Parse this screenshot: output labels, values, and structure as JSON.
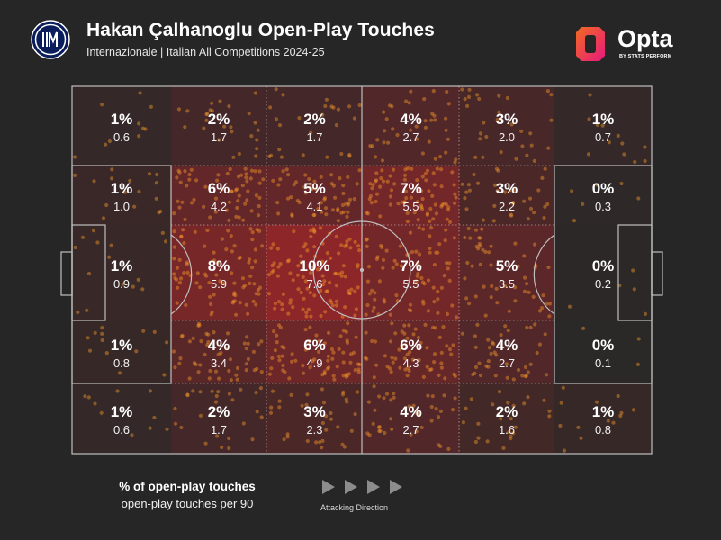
{
  "header": {
    "title": "Hakan Çalhanoglu Open-Play Touches",
    "subtitle": "Internazionale | Italian All Competitions 2024-25",
    "brand_name": "Opta",
    "brand_sub": "BY STATS PERFORM",
    "club_logo_icon": "inter-milan-crest-icon",
    "brand_logo_icon": "opta-logo-icon"
  },
  "legend": {
    "pct_label": "% of open-play touches",
    "p90_label": "open-play touches per 90"
  },
  "direction": {
    "label": "Attacking Direction",
    "arrow_icon": "triangle-right-icon",
    "arrow_count": 4
  },
  "colors": {
    "background": "#262626",
    "pitch_lines": "#bfbfbf",
    "heat_low": "#282828",
    "heat_high": "#c9252a",
    "dot": "#ff9f2a",
    "opta_orange": "#f26a21",
    "opta_pink": "#e8197d"
  },
  "chart_data": {
    "type": "heatmap",
    "title": "Hakan Çalhanoglu Open-Play Touches",
    "subtitle": "Internazionale | Italian All Competitions 2024-25",
    "rows": [
      "top",
      "upper",
      "middle",
      "lower",
      "bottom"
    ],
    "columns": [
      "defensive-third-deep",
      "defensive-third",
      "defensive-half",
      "attacking-half",
      "attacking-third",
      "attacking-third-deep"
    ],
    "cells": [
      [
        {
          "pct": "1%",
          "p90": "0.6"
        },
        {
          "pct": "2%",
          "p90": "1.7"
        },
        {
          "pct": "2%",
          "p90": "1.7"
        },
        {
          "pct": "4%",
          "p90": "2.7"
        },
        {
          "pct": "3%",
          "p90": "2.0"
        },
        {
          "pct": "1%",
          "p90": "0.7"
        }
      ],
      [
        {
          "pct": "1%",
          "p90": "1.0"
        },
        {
          "pct": "6%",
          "p90": "4.2"
        },
        {
          "pct": "5%",
          "p90": "4.1"
        },
        {
          "pct": "7%",
          "p90": "5.5"
        },
        {
          "pct": "3%",
          "p90": "2.2"
        },
        {
          "pct": "0%",
          "p90": "0.3"
        }
      ],
      [
        {
          "pct": "1%",
          "p90": "0.9"
        },
        {
          "pct": "8%",
          "p90": "5.9"
        },
        {
          "pct": "10%",
          "p90": "7.6"
        },
        {
          "pct": "7%",
          "p90": "5.5"
        },
        {
          "pct": "5%",
          "p90": "3.5"
        },
        {
          "pct": "0%",
          "p90": "0.2"
        }
      ],
      [
        {
          "pct": "1%",
          "p90": "0.8"
        },
        {
          "pct": "4%",
          "p90": "3.4"
        },
        {
          "pct": "6%",
          "p90": "4.9"
        },
        {
          "pct": "6%",
          "p90": "4.3"
        },
        {
          "pct": "4%",
          "p90": "2.7"
        },
        {
          "pct": "0%",
          "p90": "0.1"
        }
      ],
      [
        {
          "pct": "1%",
          "p90": "0.6"
        },
        {
          "pct": "2%",
          "p90": "1.7"
        },
        {
          "pct": "3%",
          "p90": "2.3"
        },
        {
          "pct": "4%",
          "p90": "2.7"
        },
        {
          "pct": "2%",
          "p90": "1.6"
        },
        {
          "pct": "1%",
          "p90": "0.8"
        }
      ]
    ],
    "legend": [
      "% of open-play touches",
      "open-play touches per 90"
    ],
    "attacking_direction": "left-to-right",
    "scatter_overlay": "individual touch locations",
    "grid": true
  }
}
